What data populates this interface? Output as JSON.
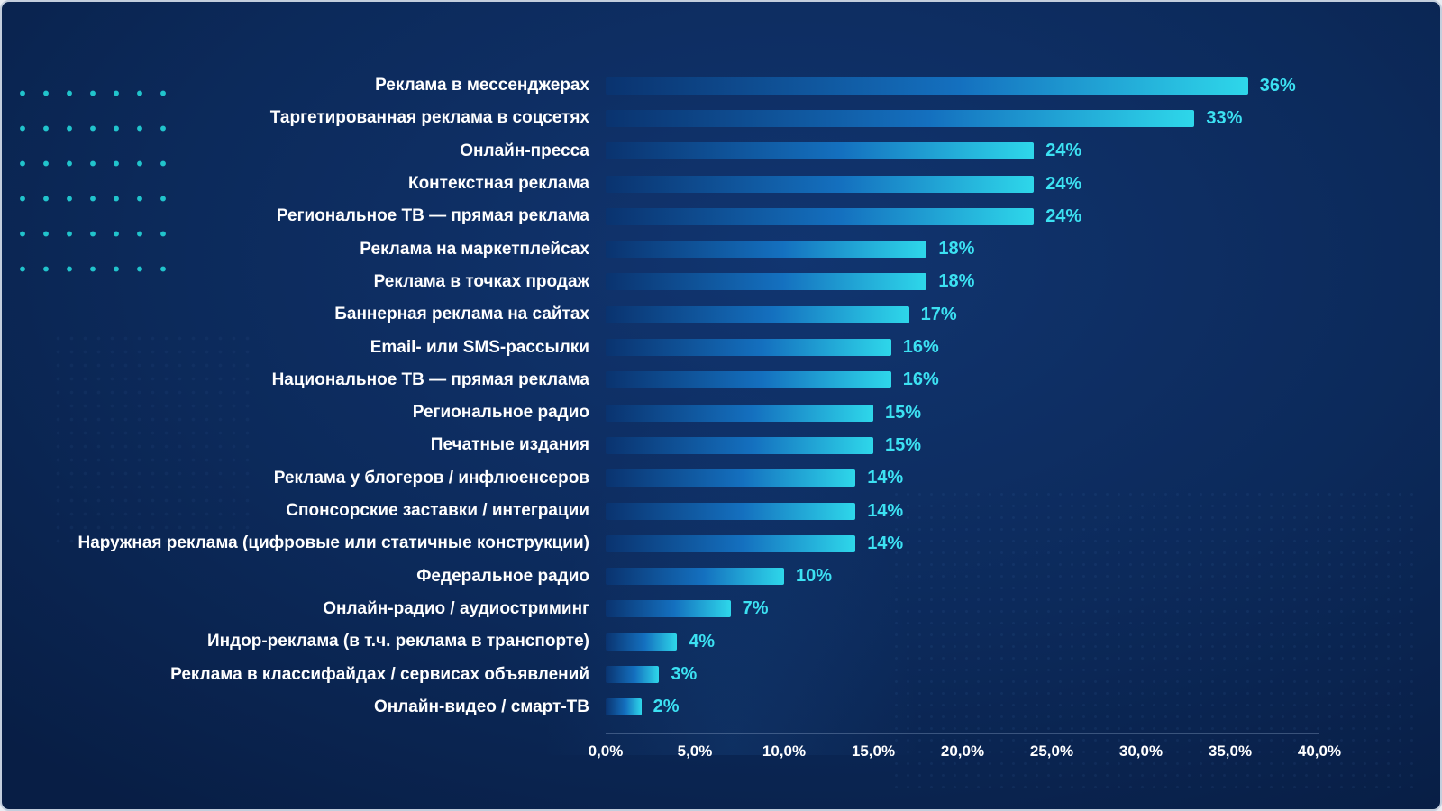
{
  "chart_data": {
    "type": "bar",
    "orientation": "horizontal",
    "categories": [
      "Реклама в мессенджерах",
      "Таргетированная реклама в соцсетях",
      "Онлайн-пресса",
      "Контекстная реклама",
      "Региональное ТВ — прямая реклама",
      "Реклама на маркетплейсах",
      "Реклама в точках продаж",
      "Баннерная реклама на сайтах",
      "Email- или SMS-рассылки",
      "Национальное ТВ — прямая реклама",
      "Региональное радио",
      "Печатные издания",
      "Реклама у блогеров / инфлюенсеров",
      "Спонсорские заставки / интеграции",
      "Наружная реклама (цифровые или статичные конструкции)",
      "Федеральное радио",
      "Онлайн-радио / аудиостриминг",
      "Индор-реклама (в т.ч. реклама в транспорте)",
      "Реклама в классифайдах / сервисах объявлений",
      "Онлайн-видео / смарт-ТВ"
    ],
    "values": [
      36,
      33,
      24,
      24,
      24,
      18,
      18,
      17,
      16,
      16,
      15,
      15,
      14,
      14,
      14,
      10,
      7,
      4,
      3,
      2
    ],
    "value_labels": [
      "36%",
      "33%",
      "24%",
      "24%",
      "24%",
      "18%",
      "18%",
      "17%",
      "16%",
      "16%",
      "15%",
      "15%",
      "14%",
      "14%",
      "14%",
      "10%",
      "7%",
      "4%",
      "3%",
      "2%"
    ],
    "x_ticks": [
      "0,0%",
      "5,0%",
      "10,0%",
      "15,0%",
      "20,0%",
      "25,0%",
      "30,0%",
      "35,0%",
      "40,0%"
    ],
    "xlim": [
      0,
      40
    ],
    "title": "",
    "xlabel": "",
    "ylabel": "",
    "grid": false,
    "legend": false,
    "colors": {
      "background": "#0c2a5b",
      "bar_gradient_start": "#0a336f",
      "bar_gradient_mid": "#1470bf",
      "bar_gradient_end": "#2ed7ea",
      "value_label": "#3ce1f2",
      "category_label": "#ffffff",
      "tick_label": "#ffffff",
      "dot_decoration": "#22ccd2"
    }
  }
}
